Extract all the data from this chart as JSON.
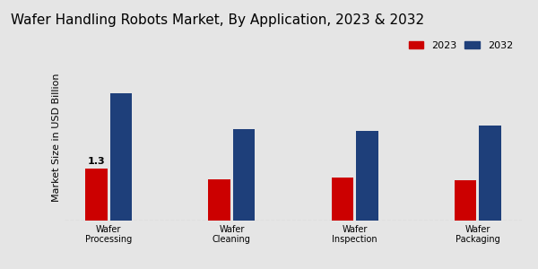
{
  "title": "Wafer Handling Robots Market, By Application, 2023 & 2032",
  "ylabel": "Market Size in USD Billion",
  "categories": [
    "Wafer\nProcessing",
    "Wafer\nCleaning",
    "Wafer\nInspection",
    "Wafer\nPackaging"
  ],
  "values_2023": [
    1.3,
    1.05,
    1.08,
    1.02
  ],
  "values_2032": [
    3.2,
    2.3,
    2.25,
    2.4
  ],
  "color_2023": "#cc0000",
  "color_2032": "#1e3f7a",
  "annotation_value": "1.3",
  "background_color": "#e5e5e5",
  "footer_color": "#cc0000",
  "legend_labels": [
    "2023",
    "2032"
  ],
  "bar_width": 0.18,
  "ylim": [
    0,
    4.2
  ],
  "title_fontsize": 11,
  "axis_label_fontsize": 8,
  "tick_fontsize": 7,
  "legend_fontsize": 8,
  "annot_fontsize": 8
}
